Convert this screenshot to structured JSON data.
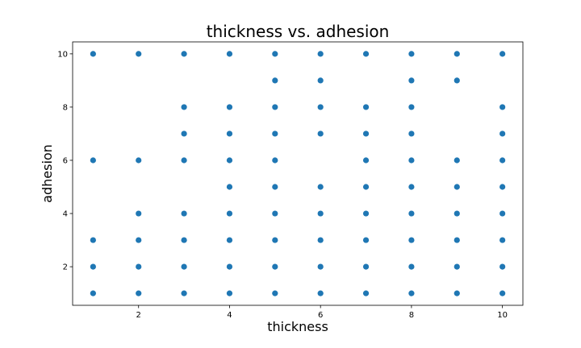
{
  "chart_data": {
    "type": "scatter",
    "title": "thickness vs. adhesion",
    "xlabel": "thickness",
    "ylabel": "adhesion",
    "xlim": [
      0.55,
      10.45
    ],
    "ylim": [
      0.55,
      10.45
    ],
    "xticks": [
      2,
      4,
      6,
      8,
      10
    ],
    "yticks": [
      2,
      4,
      6,
      8,
      10
    ],
    "grid": false,
    "marker_color": "#1f77b4",
    "points": [
      [
        1,
        10
      ],
      [
        1,
        6
      ],
      [
        1,
        3
      ],
      [
        1,
        2
      ],
      [
        1,
        1
      ],
      [
        2,
        10
      ],
      [
        2,
        6
      ],
      [
        2,
        4
      ],
      [
        2,
        3
      ],
      [
        2,
        2
      ],
      [
        2,
        1
      ],
      [
        3,
        10
      ],
      [
        3,
        8
      ],
      [
        3,
        7
      ],
      [
        3,
        6
      ],
      [
        3,
        4
      ],
      [
        3,
        3
      ],
      [
        3,
        2
      ],
      [
        3,
        1
      ],
      [
        4,
        10
      ],
      [
        4,
        8
      ],
      [
        4,
        7
      ],
      [
        4,
        6
      ],
      [
        4,
        5
      ],
      [
        4,
        4
      ],
      [
        4,
        3
      ],
      [
        4,
        2
      ],
      [
        4,
        1
      ],
      [
        5,
        10
      ],
      [
        5,
        9
      ],
      [
        5,
        8
      ],
      [
        5,
        7
      ],
      [
        5,
        6
      ],
      [
        5,
        5
      ],
      [
        5,
        4
      ],
      [
        5,
        3
      ],
      [
        5,
        2
      ],
      [
        5,
        1
      ],
      [
        6,
        10
      ],
      [
        6,
        9
      ],
      [
        6,
        8
      ],
      [
        6,
        7
      ],
      [
        6,
        5
      ],
      [
        6,
        4
      ],
      [
        6,
        3
      ],
      [
        6,
        2
      ],
      [
        6,
        1
      ],
      [
        7,
        10
      ],
      [
        7,
        8
      ],
      [
        7,
        7
      ],
      [
        7,
        6
      ],
      [
        7,
        5
      ],
      [
        7,
        4
      ],
      [
        7,
        3
      ],
      [
        7,
        2
      ],
      [
        7,
        1
      ],
      [
        8,
        10
      ],
      [
        8,
        9
      ],
      [
        8,
        8
      ],
      [
        8,
        7
      ],
      [
        8,
        6
      ],
      [
        8,
        5
      ],
      [
        8,
        4
      ],
      [
        8,
        3
      ],
      [
        8,
        2
      ],
      [
        8,
        1
      ],
      [
        9,
        10
      ],
      [
        9,
        9
      ],
      [
        9,
        6
      ],
      [
        9,
        5
      ],
      [
        9,
        4
      ],
      [
        9,
        3
      ],
      [
        9,
        2
      ],
      [
        9,
        1
      ],
      [
        10,
        10
      ],
      [
        10,
        8
      ],
      [
        10,
        7
      ],
      [
        10,
        6
      ],
      [
        10,
        5
      ],
      [
        10,
        4
      ],
      [
        10,
        3
      ],
      [
        10,
        2
      ],
      [
        10,
        1
      ]
    ]
  }
}
